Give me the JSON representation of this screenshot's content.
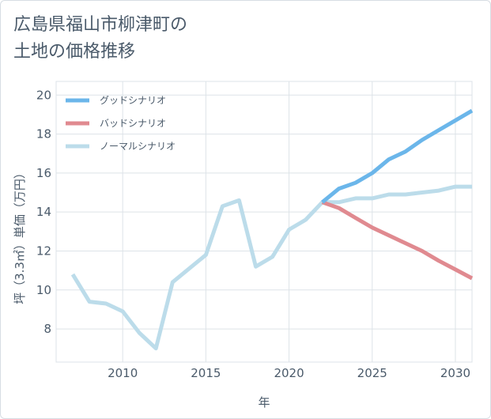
{
  "title_line1": "広島県福山市柳津町の",
  "title_line2": "土地の価格推移",
  "chart_data": {
    "type": "line",
    "xlabel": "年",
    "ylabel": "坪（3.3㎡）単価（万円）",
    "xlim": [
      2006,
      2031
    ],
    "ylim": [
      6.3,
      20.7
    ],
    "xticks": [
      2010,
      2015,
      2020,
      2025,
      2030
    ],
    "yticks": [
      8,
      10,
      12,
      14,
      16,
      18,
      20
    ],
    "legend_position": "top-left",
    "series": [
      {
        "name": "グッドシナリオ",
        "color": "#6bb6ea",
        "width": 5,
        "points": [
          [
            2022,
            14.5
          ],
          [
            2023,
            15.2
          ],
          [
            2024,
            15.5
          ],
          [
            2025,
            16.0
          ],
          [
            2026,
            16.7
          ],
          [
            2027,
            17.1
          ],
          [
            2028,
            17.7
          ],
          [
            2029,
            18.2
          ],
          [
            2030,
            18.7
          ],
          [
            2031,
            19.2
          ]
        ]
      },
      {
        "name": "バッドシナリオ",
        "color": "#e08a90",
        "width": 5,
        "points": [
          [
            2022,
            14.5
          ],
          [
            2023,
            14.2
          ],
          [
            2024,
            13.7
          ],
          [
            2025,
            13.2
          ],
          [
            2026,
            12.8
          ],
          [
            2027,
            12.4
          ],
          [
            2028,
            12.0
          ],
          [
            2029,
            11.5
          ],
          [
            2030,
            11.05
          ],
          [
            2031,
            10.6
          ]
        ]
      },
      {
        "name": "ノーマルシナリオ",
        "color": "#bcdcea",
        "width": 5,
        "points": [
          [
            2007,
            10.8
          ],
          [
            2008,
            9.4
          ],
          [
            2009,
            9.3
          ],
          [
            2010,
            8.9
          ],
          [
            2011,
            7.8
          ],
          [
            2012,
            7.0
          ],
          [
            2013,
            10.4
          ],
          [
            2014,
            11.1
          ],
          [
            2015,
            11.8
          ],
          [
            2016,
            14.3
          ],
          [
            2017,
            14.6
          ],
          [
            2018,
            11.2
          ],
          [
            2019,
            11.7
          ],
          [
            2020,
            13.1
          ],
          [
            2021,
            13.6
          ],
          [
            2022,
            14.5
          ],
          [
            2023,
            14.5
          ],
          [
            2024,
            14.7
          ],
          [
            2025,
            14.7
          ],
          [
            2026,
            14.9
          ],
          [
            2027,
            14.9
          ],
          [
            2028,
            15.0
          ],
          [
            2029,
            15.1
          ],
          [
            2030,
            15.3
          ],
          [
            2031,
            15.3
          ]
        ]
      }
    ]
  }
}
